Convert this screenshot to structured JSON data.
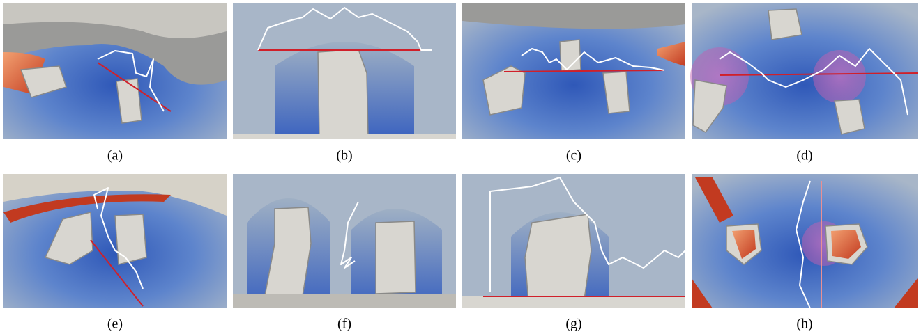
{
  "figure": {
    "panels": [
      {
        "caption": "(a)"
      },
      {
        "caption": "(b)"
      },
      {
        "caption": "(c)"
      },
      {
        "caption": "(d)"
      },
      {
        "caption": "(e)"
      },
      {
        "caption": "(f)"
      },
      {
        "caption": "(g)"
      },
      {
        "caption": "(h)"
      }
    ]
  }
}
